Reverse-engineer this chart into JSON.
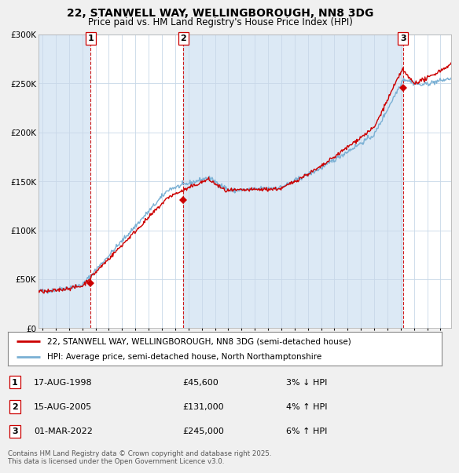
{
  "title": "22, STANWELL WAY, WELLINGBOROUGH, NN8 3DG",
  "subtitle": "Price paid vs. HM Land Registry's House Price Index (HPI)",
  "background_color": "#f0f0f0",
  "plot_bg_color": "#dce9f5",
  "plot_inner_bg": "#ffffff",
  "legend_line1": "22, STANWELL WAY, WELLINGBOROUGH, NN8 3DG (semi-detached house)",
  "legend_line2": "HPI: Average price, semi-detached house, North Northamptonshire",
  "footnote": "Contains HM Land Registry data © Crown copyright and database right 2025.\nThis data is licensed under the Open Government Licence v3.0.",
  "sale_points": [
    {
      "label": "1",
      "date_num": 1998.62,
      "price": 45600
    },
    {
      "label": "2",
      "date_num": 2005.62,
      "price": 131000
    },
    {
      "label": "3",
      "date_num": 2022.17,
      "price": 245000
    }
  ],
  "table_rows": [
    {
      "num": "1",
      "date": "17-AUG-1998",
      "price": "£45,600",
      "change": "3% ↓ HPI"
    },
    {
      "num": "2",
      "date": "15-AUG-2005",
      "price": "£131,000",
      "change": "4% ↑ HPI"
    },
    {
      "num": "3",
      "date": "01-MAR-2022",
      "price": "£245,000",
      "change": "6% ↑ HPI"
    }
  ],
  "hpi_color": "#7ab0d4",
  "price_color": "#cc0000",
  "vline_color": "#cc0000",
  "ylim": [
    0,
    300000
  ],
  "xlim_start": 1994.7,
  "xlim_end": 2025.8,
  "yticks": [
    0,
    50000,
    100000,
    150000,
    200000,
    250000,
    300000
  ],
  "ytick_labels": [
    "£0",
    "£50K",
    "£100K",
    "£150K",
    "£200K",
    "£250K",
    "£300K"
  ],
  "xticks": [
    1995,
    1996,
    1997,
    1998,
    1999,
    2000,
    2001,
    2002,
    2003,
    2004,
    2005,
    2006,
    2007,
    2008,
    2009,
    2010,
    2011,
    2012,
    2013,
    2014,
    2015,
    2016,
    2017,
    2018,
    2019,
    2020,
    2021,
    2022,
    2023,
    2024,
    2025
  ]
}
